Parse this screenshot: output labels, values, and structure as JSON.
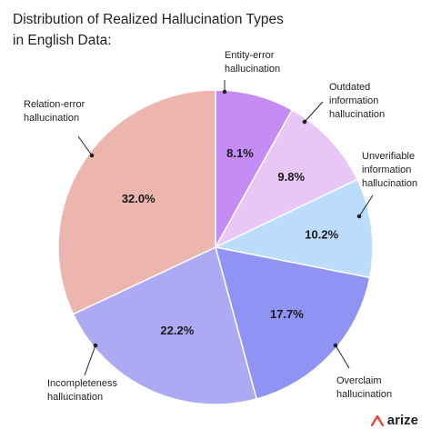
{
  "chart_data": {
    "type": "pie",
    "title_line1": "Distribution of Realized Hallucination Types",
    "title_line2": "in English Data:",
    "slices": [
      {
        "name_line1": "Entity-error",
        "name_line2": "hallucination",
        "name_line3": "",
        "value": 8.1,
        "label": "8.1%",
        "color": "#c58cf5"
      },
      {
        "name_line1": "Outdated",
        "name_line2": "information",
        "name_line3": "hallucination",
        "value": 9.8,
        "label": "9.8%",
        "color": "#e8c6f5"
      },
      {
        "name_line1": "Unverifiable",
        "name_line2": "information",
        "name_line3": "hallucination",
        "value": 10.2,
        "label": "10.2%",
        "color": "#bcdcfb"
      },
      {
        "name_line1": "Overclaim",
        "name_line2": "hallucination",
        "name_line3": "",
        "value": 17.7,
        "label": "17.7%",
        "color": "#8f93f3"
      },
      {
        "name_line1": "Incompleteness",
        "name_line2": "hallucination",
        "name_line3": "",
        "value": 22.2,
        "label": "22.2%",
        "color": "#ada9f2"
      },
      {
        "name_line1": "Relation-error",
        "name_line2": "hallucination",
        "name_line3": "",
        "value": 32.0,
        "label": "32.0%",
        "color": "#ecb5ae"
      }
    ]
  },
  "brand": {
    "name": "arize",
    "icon": "arize-logo-icon",
    "color": "#e8433a"
  }
}
